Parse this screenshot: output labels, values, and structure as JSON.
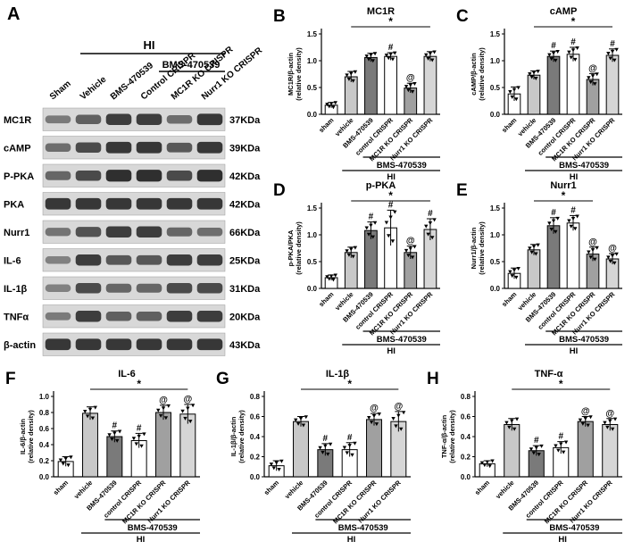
{
  "colors": {
    "sham": "#ffffff",
    "vehicle": "#c8c8c8",
    "bms": "#7a7a7a",
    "control": "#ffffff",
    "mc1r_ko": "#a0a0a0",
    "nurr1_ko": "#d6d6d6",
    "band": "#222222"
  },
  "western_blot": {
    "panel_letter": "A",
    "hi_label": "HI",
    "bms_label": "BMS-470539",
    "lanes": [
      "Sham",
      "Vehicle",
      "BMS-470539",
      "Control CRISPR",
      "MC1R KO CRISPR",
      "Nurr1 KO CRISPR"
    ],
    "rows": [
      {
        "protein": "MC1R",
        "kda": "37KDa",
        "intensity": [
          0.35,
          0.55,
          0.8,
          0.8,
          0.45,
          0.85
        ]
      },
      {
        "protein": "cAMP",
        "kda": "39KDa",
        "intensity": [
          0.45,
          0.7,
          0.85,
          0.85,
          0.6,
          0.85
        ]
      },
      {
        "protein": "P-PKA",
        "kda": "42KDa",
        "intensity": [
          0.5,
          0.7,
          0.9,
          0.9,
          0.7,
          0.9
        ]
      },
      {
        "protein": "PKA",
        "kda": "42KDa",
        "intensity": [
          0.85,
          0.85,
          0.85,
          0.85,
          0.85,
          0.85
        ]
      },
      {
        "protein": "Nurr1",
        "kda": "66KDa",
        "intensity": [
          0.4,
          0.65,
          0.8,
          0.8,
          0.5,
          0.45
        ]
      },
      {
        "protein": "IL-6",
        "kda": "25KDa",
        "intensity": [
          0.3,
          0.8,
          0.6,
          0.6,
          0.8,
          0.8
        ]
      },
      {
        "protein": "IL-1β",
        "kda": "31KDa",
        "intensity": [
          0.3,
          0.7,
          0.5,
          0.5,
          0.7,
          0.7
        ]
      },
      {
        "protein": "TNFα",
        "kda": "20KDa",
        "intensity": [
          0.35,
          0.8,
          0.55,
          0.55,
          0.8,
          0.8
        ]
      },
      {
        "protein": "β-actin",
        "kda": "43KDa",
        "intensity": [
          0.85,
          0.85,
          0.85,
          0.85,
          0.85,
          0.85
        ]
      }
    ]
  },
  "chart_data": [
    {
      "letter": "B",
      "type": "bar",
      "title": "MC1R",
      "ylabel": "MC1R/β-actin\n(relative density)",
      "ylim": [
        0,
        1.5
      ],
      "yticks": [
        "0.0",
        "0.5",
        "1.0",
        "1.5"
      ],
      "categories": [
        "sham",
        "vehicle",
        "BMS-470539",
        "control CRISPR",
        "MC1R KO CRISPR",
        "Nurr1 KO CRISPR"
      ],
      "values": [
        0.17,
        0.7,
        1.06,
        1.08,
        0.49,
        1.08
      ],
      "errors": [
        0.05,
        0.1,
        0.08,
        0.07,
        0.09,
        0.09
      ],
      "marks": [
        "",
        "",
        "",
        "#",
        "@",
        ""
      ],
      "sig_mark": "*",
      "sig_from": 1,
      "sig_to": 5,
      "bms_label": "BMS-470539",
      "hi_label": "HI"
    },
    {
      "letter": "C",
      "type": "bar",
      "title": "cAMP",
      "ylabel": "cAMP/β-actin\n(relative density)",
      "ylim": [
        0,
        1.5
      ],
      "yticks": [
        "0.0",
        "0.5",
        "1.0",
        "1.5"
      ],
      "categories": [
        "sham",
        "vehicle",
        "BMS-470539",
        "control CRISPR",
        "MC1R KO CRISPR",
        "Nurr1 KO CRISPR"
      ],
      "values": [
        0.38,
        0.73,
        1.08,
        1.12,
        0.65,
        1.1
      ],
      "errors": [
        0.13,
        0.08,
        0.1,
        0.13,
        0.11,
        0.12
      ],
      "marks": [
        "",
        "",
        "#",
        "#",
        "@",
        "#"
      ],
      "sig_mark": "*",
      "sig_from": 1,
      "sig_to": 5,
      "bms_label": "BMS-470539",
      "hi_label": "HI"
    },
    {
      "letter": "D",
      "type": "bar",
      "title": "p-PKA",
      "ylabel": "p-PKA/PKA\n(relative density)",
      "ylim": [
        0,
        1.5
      ],
      "yticks": [
        "0.0",
        "0.5",
        "1.0",
        "1.5"
      ],
      "categories": [
        "sham",
        "vehicle",
        "BMS-470539",
        "control CRISPR",
        "MC1R KO CRISPR",
        "Nurr1 KO CRISPR"
      ],
      "values": [
        0.2,
        0.67,
        1.08,
        1.13,
        0.67,
        1.1
      ],
      "errors": [
        0.05,
        0.1,
        0.16,
        0.33,
        0.12,
        0.2
      ],
      "marks": [
        "",
        "",
        "#",
        "#",
        "@",
        "#"
      ],
      "sig_mark": "*",
      "sig_from": 1,
      "sig_to": 5,
      "bms_label": "BMS-470539",
      "hi_label": "HI"
    },
    {
      "letter": "E",
      "type": "bar",
      "title": "Nurr1",
      "ylabel": "Nurr1/β-actin\n(relative density)",
      "ylim": [
        0,
        1.5
      ],
      "yticks": [
        "0.0",
        "0.5",
        "1.0",
        "1.5"
      ],
      "categories": [
        "sham",
        "vehicle",
        "BMS-470539",
        "control CRISPR",
        "MC1R KO CRISPR",
        "Nurr1 KO CRISPR"
      ],
      "values": [
        0.28,
        0.72,
        1.17,
        1.22,
        0.64,
        0.55
      ],
      "errors": [
        0.1,
        0.1,
        0.15,
        0.14,
        0.13,
        0.1
      ],
      "marks": [
        "",
        "",
        "#",
        "#",
        "@",
        "@"
      ],
      "sig_mark": "*",
      "sig_from": 1,
      "sig_to": 4,
      "bms_label": "BMS-470539",
      "hi_label": "HI"
    },
    {
      "letter": "F",
      "type": "bar",
      "title": "IL-6",
      "ylabel": "IL-6/β-actin\n(relative density)",
      "ylim": [
        0,
        1.0
      ],
      "yticks": [
        "0.0",
        "0.2",
        "0.4",
        "0.6",
        "0.8",
        "1.0"
      ],
      "categories": [
        "sham",
        "vehicle",
        "BMS-470539",
        "control CRISPR",
        "MC1R KO CRISPR",
        "Nurr1 KO CRISPR"
      ],
      "values": [
        0.19,
        0.79,
        0.5,
        0.45,
        0.8,
        0.78
      ],
      "errors": [
        0.06,
        0.08,
        0.07,
        0.09,
        0.09,
        0.12
      ],
      "marks": [
        "",
        "",
        "#",
        "#",
        "@",
        "@"
      ],
      "sig_mark": "*",
      "sig_from": 1,
      "sig_to": 5,
      "bms_label": "BMS-470539",
      "hi_label": "HI"
    },
    {
      "letter": "G",
      "type": "bar",
      "title": "IL-1β",
      "ylabel": "IL-1β/β-actin\n(relative density)",
      "ylim": [
        0,
        0.8
      ],
      "yticks": [
        "0.0",
        "0.2",
        "0.4",
        "0.6",
        "0.8"
      ],
      "categories": [
        "sham",
        "vehicle",
        "BMS-470539",
        "control CRISPR",
        "MC1R KO CRISPR",
        "Nurr1 KO CRISPR"
      ],
      "values": [
        0.11,
        0.55,
        0.27,
        0.27,
        0.57,
        0.55
      ],
      "errors": [
        0.05,
        0.05,
        0.06,
        0.07,
        0.06,
        0.1
      ],
      "marks": [
        "",
        "",
        "#",
        "#",
        "@",
        "@"
      ],
      "sig_mark": "*",
      "sig_from": 1,
      "sig_to": 5,
      "bms_label": "BMS-470539",
      "hi_label": "HI"
    },
    {
      "letter": "H",
      "type": "bar",
      "title": "TNF-α",
      "ylabel": "TNF-α/β-actin\n(relative density)",
      "ylim": [
        0,
        0.8
      ],
      "yticks": [
        "0.0",
        "0.2",
        "0.4",
        "0.6",
        "0.8"
      ],
      "categories": [
        "sham",
        "vehicle",
        "BMS-470539",
        "control CRISPR",
        "MC1R KO CRISPR",
        "Nurr1 KO CRISPR"
      ],
      "values": [
        0.13,
        0.52,
        0.26,
        0.29,
        0.55,
        0.52
      ],
      "errors": [
        0.03,
        0.06,
        0.05,
        0.06,
        0.05,
        0.06
      ],
      "marks": [
        "",
        "",
        "#",
        "#",
        "@",
        "@"
      ],
      "sig_mark": "*",
      "sig_from": 1,
      "sig_to": 5,
      "bms_label": "BMS-470539",
      "hi_label": "HI"
    }
  ]
}
